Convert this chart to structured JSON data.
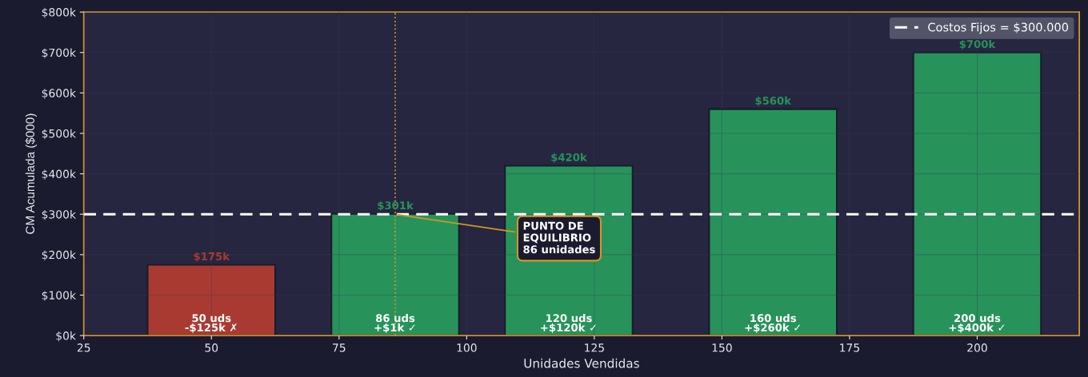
{
  "chart_data": {
    "type": "bar",
    "xlabel": "Unidades Vendidas",
    "ylabel": "CM Acumulada ($000)",
    "x": [
      50,
      86,
      120,
      160,
      200
    ],
    "values": [
      175,
      301,
      420,
      560,
      700
    ],
    "colors": [
      "#a93a32",
      "#27935a",
      "#27935a",
      "#27935a",
      "#27935a"
    ],
    "value_labels": [
      "$175k",
      "$301k",
      "$420k",
      "$560k",
      "$700k"
    ],
    "xlim": [
      25,
      220
    ],
    "xticks": [
      25,
      50,
      75,
      100,
      125,
      150,
      175,
      200
    ],
    "ylim": [
      0,
      800
    ],
    "yticks": [
      {
        "value": 0,
        "label": "$0k"
      },
      {
        "value": 100,
        "label": "$100k"
      },
      {
        "value": 200,
        "label": "$200k"
      },
      {
        "value": 300,
        "label": "$300k"
      },
      {
        "value": 400,
        "label": "$400k"
      },
      {
        "value": 500,
        "label": "$500k"
      },
      {
        "value": 600,
        "label": "$600k"
      },
      {
        "value": 700,
        "label": "$700k"
      },
      {
        "value": 800,
        "label": "$800k"
      }
    ],
    "ref_lines": [
      {
        "axis": "y",
        "value": 300,
        "label": "Costos Fijos = $300.000",
        "color": "#ffffff",
        "line_style": "dashed"
      },
      {
        "axis": "x",
        "value": 86,
        "color": "#d4952a",
        "line_style": "dotted"
      }
    ],
    "annotations": [
      {
        "text": "PUNTO DE\nEQUILIBRIO\n86 unidades",
        "x": 86,
        "y": 300
      },
      {
        "text": "50 uds\n-$125k ✗",
        "x": 50,
        "y": 0
      },
      {
        "text": "86 uds\n+$1k ✓",
        "x": 86,
        "y": 0
      },
      {
        "text": "120 uds\n+$120k ✓",
        "x": 120,
        "y": 0
      },
      {
        "text": "160 uds\n+$260k ✓",
        "x": 160,
        "y": 0
      },
      {
        "text": "200 uds\n+$400k ✓",
        "x": 200,
        "y": 0
      }
    ],
    "grid": true,
    "legend": "top right"
  }
}
